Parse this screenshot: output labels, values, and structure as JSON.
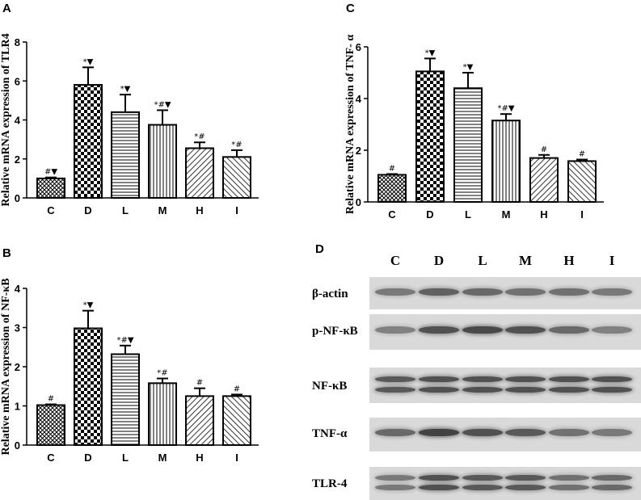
{
  "panel_letters": [
    "A",
    "C",
    "B",
    "D"
  ],
  "colors": {
    "bar_fill": "#ffffff",
    "bar_stroke": "#000000",
    "blot_bg": "#d9d9d9",
    "band": "#3a3a3a"
  },
  "chart_data": [
    {
      "type": "bar",
      "panel": "A",
      "categories": [
        "C",
        "D",
        "L",
        "M",
        "H",
        "I"
      ],
      "values": [
        1.0,
        5.8,
        4.4,
        3.75,
        2.55,
        2.1
      ],
      "errors": [
        0.05,
        0.9,
        0.9,
        0.75,
        0.3,
        0.35
      ],
      "annotations": [
        "#▼",
        "*▼",
        "*▼",
        "*#▼",
        "*#",
        "*#"
      ],
      "patterns": [
        "crosshatch",
        "checker",
        "hlines",
        "vlines",
        "diagfwd",
        "diagback"
      ],
      "ylabel": "Relative mRNA expression of TLR4",
      "ylim": [
        0,
        8
      ],
      "yticks": [
        0,
        2,
        4,
        6,
        8
      ]
    },
    {
      "type": "bar",
      "panel": "C",
      "categories": [
        "C",
        "D",
        "L",
        "M",
        "H",
        "I"
      ],
      "values": [
        1.05,
        5.05,
        4.4,
        3.15,
        1.7,
        1.58
      ],
      "errors": [
        0.03,
        0.5,
        0.6,
        0.25,
        0.12,
        0.06
      ],
      "annotations": [
        "#",
        "*▼",
        "*▼",
        "*#▼",
        "#",
        "#"
      ],
      "patterns": [
        "crosshatch",
        "checker",
        "hlines",
        "vlines",
        "diagfwd",
        "diagback"
      ],
      "ylabel": "Relative mRNA expression of TNF- α",
      "ylim": [
        0,
        6
      ],
      "yticks": [
        0,
        2,
        4,
        6
      ]
    },
    {
      "type": "bar",
      "panel": "B",
      "categories": [
        "C",
        "D",
        "L",
        "M",
        "H",
        "I"
      ],
      "values": [
        1.02,
        2.98,
        2.32,
        1.58,
        1.25,
        1.25
      ],
      "errors": [
        0.02,
        0.45,
        0.22,
        0.12,
        0.2,
        0.04
      ],
      "annotations": [
        "#",
        "*▼",
        "*#▼",
        "*#",
        "#",
        "#"
      ],
      "patterns": [
        "crosshatch",
        "checker",
        "hlines",
        "vlines",
        "diagfwd",
        "diagback"
      ],
      "ylabel": "Relative mRNA expression of NF-κB",
      "ylim": [
        0,
        4
      ],
      "yticks": [
        0,
        1,
        2,
        3,
        4
      ]
    }
  ],
  "blot": {
    "lanes": [
      "C",
      "D",
      "L",
      "M",
      "H",
      "I"
    ],
    "rows": [
      {
        "label": "β-actin",
        "bands": 1
      },
      {
        "label": "p-NF-κB",
        "bands": 1
      },
      {
        "label": "NF-κB",
        "bands": 2
      },
      {
        "label": "TNF-α",
        "bands": 1
      },
      {
        "label": "TLR-4",
        "bands": 2
      }
    ]
  }
}
